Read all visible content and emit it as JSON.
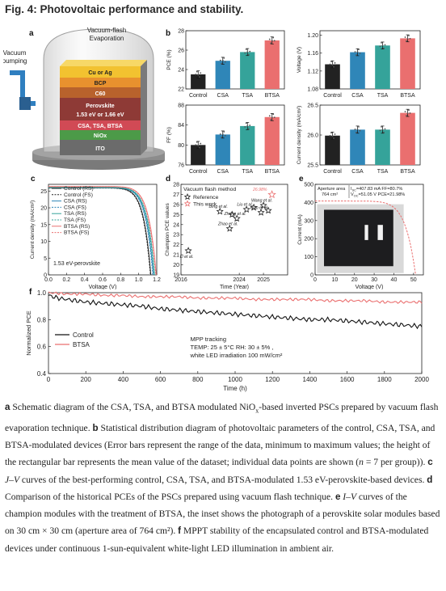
{
  "figure": {
    "title": "Fig. 4: Photovoltaic performance and stability."
  },
  "panel_letters": [
    "a",
    "b",
    "c",
    "d",
    "e",
    "f"
  ],
  "panel_a": {
    "chamber_label_1": "Vacuum-flash",
    "chamber_label_2": "Evaporation",
    "pump_label_1": "Vacuum",
    "pump_label_2": "pumping",
    "layers": [
      "Cu or Ag",
      "BCP",
      "C60",
      "Perovskite",
      "1.53 eV or 1.66 eV",
      "CSA, TSA, BTSA",
      "NiOx",
      "ITO"
    ],
    "colors": {
      "cu": "#f2c230",
      "bcp": "#e8912e",
      "c60": "#b8622c",
      "perovskite": "#8e3a36",
      "interlayer": "#d14a55",
      "niox": "#4c9a48",
      "ito": "#6b6b6b"
    }
  },
  "chart_data": [
    {
      "panel": "b1",
      "type": "bar",
      "ylabel": "PCE (%)",
      "categories": [
        "Control",
        "CSA",
        "TSA",
        "BTSA"
      ],
      "values": [
        23.5,
        24.9,
        25.8,
        27.0
      ],
      "ylim": [
        22,
        28
      ],
      "yticks": [
        "22",
        "24",
        "26",
        "28"
      ],
      "colors": [
        "#222222",
        "#2f86b8",
        "#35a39a",
        "#ea6f6f"
      ]
    },
    {
      "panel": "b2",
      "type": "bar",
      "ylabel": "Voltage (V)",
      "categories": [
        "Control",
        "CSA",
        "TSA",
        "BTSA"
      ],
      "values": [
        1.135,
        1.162,
        1.177,
        1.193
      ],
      "ylim": [
        1.08,
        1.21
      ],
      "yticks": [
        "1.08",
        "1.12",
        "1.16",
        "1.20"
      ],
      "colors": [
        "#222222",
        "#2f86b8",
        "#35a39a",
        "#ea6f6f"
      ]
    },
    {
      "panel": "b3",
      "type": "bar",
      "ylabel": "FF (%)",
      "categories": [
        "Control",
        "CSA",
        "TSA",
        "BTSA"
      ],
      "values": [
        80.0,
        82.1,
        83.8,
        85.6
      ],
      "ylim": [
        76,
        88
      ],
      "yticks": [
        "76",
        "80",
        "84",
        "88"
      ],
      "colors": [
        "#222222",
        "#2f86b8",
        "#35a39a",
        "#ea6f6f"
      ]
    },
    {
      "panel": "b4",
      "type": "bar",
      "ylabel": "Current density (mA/cm²)",
      "categories": [
        "Control",
        "CSA",
        "TSA",
        "BTSA"
      ],
      "values": [
        25.99,
        26.09,
        26.09,
        26.37
      ],
      "ylim": [
        25.5,
        26.5
      ],
      "yticks": [
        "25.5",
        "26.0",
        "26.5"
      ],
      "colors": [
        "#222222",
        "#2f86b8",
        "#35a39a",
        "#ea6f6f"
      ]
    },
    {
      "panel": "c",
      "type": "line",
      "xlabel": "Voltage (V)",
      "ylabel": "Current density (mA/cm²)",
      "xlim": [
        0,
        1.2
      ],
      "ylim": [
        0,
        27
      ],
      "xticks": [
        "0.0",
        "0.2",
        "0.4",
        "0.6",
        "0.8",
        "1.0",
        "1.2"
      ],
      "yticks": [
        "0",
        "5",
        "10",
        "15",
        "20",
        "25"
      ],
      "annotation": "1.53 eV-perovskite",
      "series": [
        {
          "name": "Control (RS)",
          "jsc": 25.95,
          "voc": 1.135,
          "color": "#222222",
          "dash": false
        },
        {
          "name": "Control (FS)",
          "jsc": 25.9,
          "voc": 1.13,
          "color": "#222222",
          "dash": true
        },
        {
          "name": "CSA (RS)",
          "jsc": 26.05,
          "voc": 1.162,
          "color": "#2f86b8",
          "dash": false
        },
        {
          "name": "CSA (FS)",
          "jsc": 26.0,
          "voc": 1.157,
          "color": "#2f86b8",
          "dash": true
        },
        {
          "name": "TSA (RS)",
          "jsc": 26.1,
          "voc": 1.177,
          "color": "#35a39a",
          "dash": false
        },
        {
          "name": "TSA (FS)",
          "jsc": 26.05,
          "voc": 1.172,
          "color": "#35a39a",
          "dash": true
        },
        {
          "name": "BTSA (RS)",
          "jsc": 26.35,
          "voc": 1.195,
          "color": "#ea6f6f",
          "dash": false
        },
        {
          "name": "BTSA (FS)",
          "jsc": 26.3,
          "voc": 1.19,
          "color": "#ea6f6f",
          "dash": true
        }
      ]
    },
    {
      "panel": "d",
      "type": "scatter",
      "xlabel": "Time (Year)",
      "ylabel": "Champion PCE values",
      "xlim": [
        2016,
        2026
      ],
      "ylim": [
        19,
        28
      ],
      "xticks": [
        "2016",
        "2024",
        "2025"
      ],
      "yticks": [
        "19",
        "20",
        "21",
        "22",
        "23",
        "24",
        "25",
        "26",
        "27",
        "28"
      ],
      "legend_title": "Vacuum flash method",
      "legend": [
        "Reference",
        "This work"
      ],
      "points": [
        {
          "x": 2017.5,
          "y": 21.4,
          "label": "Li et al.",
          "type": "ref"
        },
        {
          "x": 2023.6,
          "y": 23.6,
          "label": "Zhao et al.",
          "type": "ref"
        },
        {
          "x": 2023.9,
          "y": 24.6,
          "label": "Zhang et al.",
          "type": "ref"
        },
        {
          "x": 2023.2,
          "y": 25.3,
          "label": "Ding et al.",
          "type": "ref"
        },
        {
          "x": 2023.7,
          "y": 25.0,
          "label": "",
          "type": "ref"
        },
        {
          "x": 2024.3,
          "y": 25.5,
          "label": "Liu et al.",
          "type": "ref"
        },
        {
          "x": 2024.6,
          "y": 25.7,
          "label": "",
          "type": "ref"
        },
        {
          "x": 2024.9,
          "y": 25.2,
          "label": "Gao et al.",
          "type": "ref"
        },
        {
          "x": 2025.0,
          "y": 25.9,
          "label": "Wang et al.",
          "type": "ref"
        },
        {
          "x": 2025.2,
          "y": 25.4,
          "label": "",
          "type": "ref"
        },
        {
          "x": 2025.35,
          "y": 26.98,
          "label": "26.98%",
          "type": "this"
        }
      ]
    },
    {
      "panel": "e",
      "type": "line",
      "xlabel": "Voltage (V)",
      "ylabel": "Current (mA)",
      "xlim": [
        0,
        55
      ],
      "ylim": [
        0,
        500
      ],
      "xticks": [
        "0",
        "10",
        "20",
        "30",
        "40",
        "50"
      ],
      "yticks": [
        "0",
        "100",
        "200",
        "300",
        "400",
        "500"
      ],
      "isc": 407.83,
      "voc": 51.05,
      "annotation_1": "Aperture area",
      "annotation_2": "764 cm²",
      "annotation_3": "I",
      "annotation_3b": "SC",
      "annotation_3c": "=407.83 mA  FF=80.7%",
      "annotation_4": "V",
      "annotation_4b": "OC",
      "annotation_4c": "=51.05 V    PCE=21.98%"
    },
    {
      "panel": "f",
      "type": "line",
      "xlabel": "Time (h)",
      "ylabel": "Normalized PCE",
      "xlim": [
        0,
        2000
      ],
      "ylim": [
        0.4,
        1.0
      ],
      "xticks": [
        "0",
        "200",
        "400",
        "600",
        "800",
        "1000",
        "1200",
        "1400",
        "1600",
        "1800",
        "2000"
      ],
      "yticks": [
        "0.4",
        "0.6",
        "0.8",
        "1.0"
      ],
      "series": [
        {
          "name": "Control",
          "color": "#111111",
          "x": [
            0,
            50,
            100,
            200,
            300,
            400,
            500,
            600,
            700,
            800,
            900,
            1000,
            1100,
            1200,
            1300,
            1400,
            1500,
            1600,
            1700,
            1800,
            1900,
            2000
          ],
          "y": [
            0.98,
            0.96,
            0.95,
            0.93,
            0.92,
            0.91,
            0.9,
            0.88,
            0.87,
            0.86,
            0.85,
            0.84,
            0.83,
            0.82,
            0.81,
            0.8,
            0.8,
            0.79,
            0.78,
            0.77,
            0.76,
            0.75
          ]
        },
        {
          "name": "BTSA",
          "color": "#ea6f6f",
          "x": [
            0,
            100,
            200,
            300,
            400,
            500,
            600,
            700,
            800,
            900,
            1000,
            1100,
            1200,
            1300,
            1400,
            1500,
            1600,
            1700,
            1800,
            1900,
            2000
          ],
          "y": [
            1.0,
            0.99,
            0.99,
            0.98,
            0.98,
            0.97,
            0.97,
            0.97,
            0.96,
            0.96,
            0.96,
            0.95,
            0.95,
            0.95,
            0.95,
            0.94,
            0.94,
            0.94,
            0.93,
            0.93,
            0.93
          ]
        }
      ],
      "annotation": [
        "MPP tracking",
        "TEMP: 25 ± 5°C  RH: 30 ± 5% ,",
        "white LED irradiation 100 mW/cm²"
      ]
    }
  ],
  "caption": {
    "a_letter": "a",
    "a_text_1": " Schematic diagram of the CSA, TSA, and BTSA modulated NiO",
    "a_sub": "x",
    "a_text_2": "-based inverted PSCs prepared by vacuum flash evaporation technique. ",
    "b_letter": "b",
    "b_text": " Statistical distribution diagram of photovoltaic parameters of the control, CSA, TSA, and BTSA-modulated devices (Error bars represent the range of the data, minimum to maximum values; the height of the rectangular bar represents the mean value of the dataset; individual data points are shown (",
    "b_n": "n",
    "b_text_2": " = 7 per group)). ",
    "c_letter": "c",
    "c_iv": " J–V",
    "c_text": " curves of the best-performing control, CSA, TSA, and BTSA-modulated 1.53 eV-perovskite-based devices. ",
    "d_letter": "d",
    "d_text": " Comparison of the historical PCEs of the PSCs prepared using vacuum flash technique. ",
    "e_letter": "e",
    "e_iv": " I–V",
    "e_text": " curves of the champion modules with the treatment of BTSA, the inset shows the photograph of a perovskite solar modules based on 30 cm × 30 cm (aperture area of 764 cm²). ",
    "f_letter": "f",
    "f_text": " MPPT stability of the encapsulated control and BTSA-modulated devices under continuous 1-sun-equivalent white-light LED illumination in ambient air."
  }
}
